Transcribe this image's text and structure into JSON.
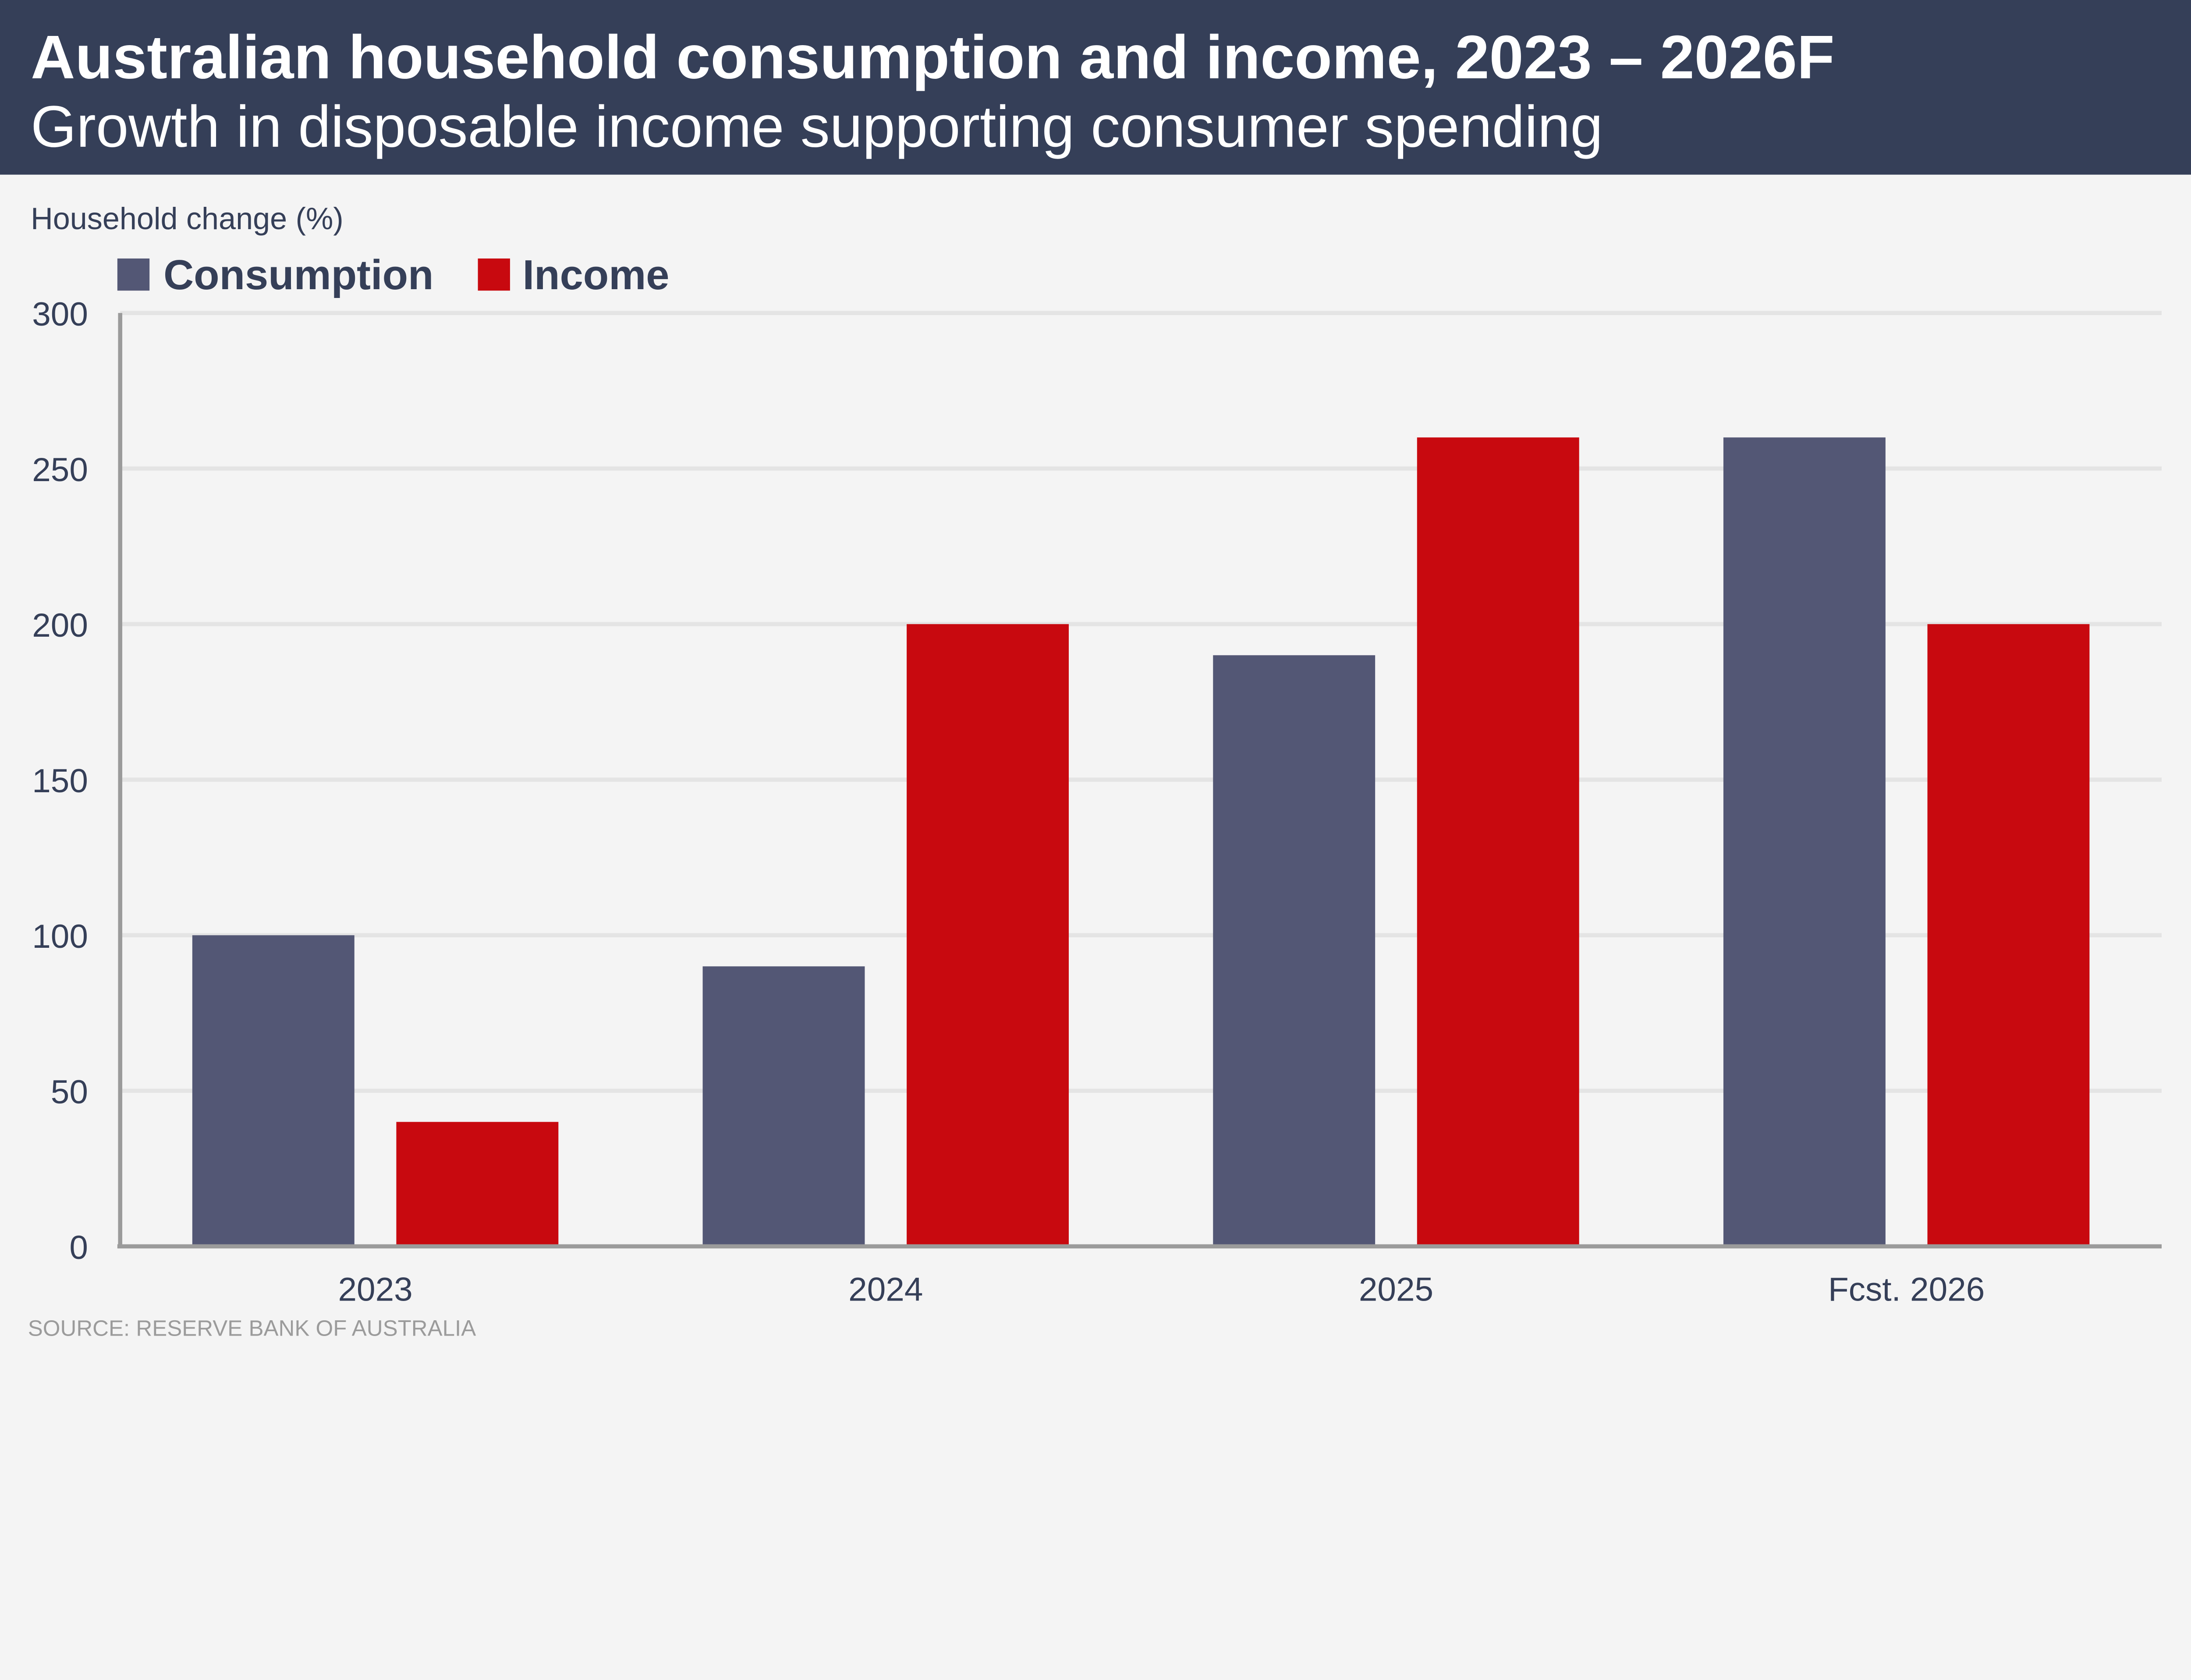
{
  "header": {
    "title": "Australian household consumption and income, 2023 – 2026F",
    "subtitle": "Growth in disposable income supporting consumer spending",
    "background": "#353f58"
  },
  "source": "SOURCE: RESERVE BANK OF AUSTRALIA",
  "chart_data": {
    "type": "bar",
    "title": "Australian household consumption and income, 2023 – 2026F",
    "subtitle": "Growth in disposable income supporting consumer spending",
    "ylabel": "Household change (%)",
    "xlabel": "",
    "categories": [
      "2023",
      "2024",
      "2025",
      "Fcst. 2026"
    ],
    "series": [
      {
        "name": "Consumption",
        "color": "#535775",
        "values": [
          100,
          90,
          190,
          260
        ]
      },
      {
        "name": "Income",
        "color": "#c8090f",
        "values": [
          40,
          200,
          260,
          200
        ]
      }
    ],
    "ylim": [
      0,
      300
    ],
    "yticks": [
      "0",
      "50",
      "100",
      "150",
      "200",
      "250",
      "300"
    ],
    "grid": true,
    "legend_position": "top-left"
  }
}
